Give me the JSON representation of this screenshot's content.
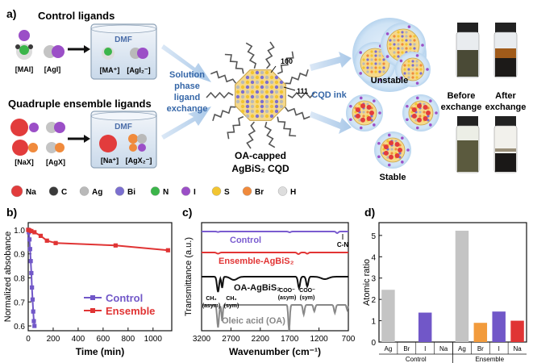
{
  "panels": {
    "a": "a)",
    "b": "b)",
    "c": "c)",
    "d": "d)"
  },
  "schematic": {
    "control_title": "Control ligands",
    "control_labels": [
      "[MAI]",
      "[AgI]"
    ],
    "control_solution_labels": [
      "[MA⁺]",
      "[AgI₂⁻]"
    ],
    "ensemble_title": "Quadruple ensemble ligands",
    "ensemble_labels": [
      "[NaX]",
      "[AgX]"
    ],
    "ensemble_solution_labels": [
      "[Na⁺]",
      "[AgX₂⁻]"
    ],
    "solvent": "DMF",
    "exchange_text": [
      "Solution",
      "phase",
      "ligand",
      "exchange"
    ],
    "facet_labels": [
      "100",
      "111"
    ],
    "dot_caption": [
      "OA-capped",
      "AgBiS₂ CQD"
    ],
    "ink_label": "CQD ink",
    "unstable": "Unstable",
    "stable": "Stable",
    "before": [
      "Before",
      "exchange"
    ],
    "after": [
      "After",
      "exchange"
    ],
    "legend": [
      {
        "label": "Na",
        "color": "#e23c3c"
      },
      {
        "label": "C",
        "color": "#3a3a3a"
      },
      {
        "label": "Ag",
        "color": "#b9b9b9"
      },
      {
        "label": "Bi",
        "color": "#7b6fd0"
      },
      {
        "label": "N",
        "color": "#3bb54a"
      },
      {
        "label": "I",
        "color": "#9b4fc7"
      },
      {
        "label": "S",
        "color": "#f2c531"
      },
      {
        "label": "Br",
        "color": "#f08a3c"
      },
      {
        "label": "H",
        "color": "#dddddd"
      }
    ]
  },
  "chart_data": [
    {
      "type": "line",
      "panel": "b",
      "xlabel": "Time (min)",
      "ylabel": "Normalized absobance",
      "xlim": [
        0,
        1150
      ],
      "ylim": [
        0.58,
        1.03
      ],
      "xticks": [
        0,
        200,
        400,
        600,
        800,
        1000
      ],
      "yticks": [
        0.6,
        0.7,
        0.8,
        0.9,
        1.0
      ],
      "series": [
        {
          "name": "Control",
          "color": "#7157c8",
          "x": [
            0,
            5,
            10,
            15,
            20,
            25,
            30,
            35,
            40,
            45,
            50
          ],
          "y": [
            1.0,
            0.99,
            0.96,
            0.92,
            0.87,
            0.82,
            0.76,
            0.71,
            0.66,
            0.62,
            0.6
          ]
        },
        {
          "name": "Ensemble",
          "color": "#e03434",
          "x": [
            0,
            10,
            25,
            50,
            100,
            150,
            220,
            700,
            1120
          ],
          "y": [
            1.0,
            0.998,
            0.995,
            0.99,
            0.975,
            0.955,
            0.945,
            0.935,
            0.915
          ]
        }
      ]
    },
    {
      "type": "line",
      "panel": "c",
      "xlabel": "Wavenumber (cm⁻¹)",
      "ylabel": "Transmittance (a.u.)",
      "xlim": [
        3200,
        700
      ],
      "xticks": [
        3200,
        2700,
        2200,
        1700,
        1200,
        700
      ],
      "series": [
        {
          "name": "Control",
          "color": "#7a5cd0"
        },
        {
          "name": "Ensemble-AgBiS₂",
          "color": "#e23434"
        },
        {
          "name": "OA-AgBiS₂",
          "color": "#111111"
        },
        {
          "name": "Oleic acid (OA)",
          "color": "#888888"
        }
      ],
      "annotations": [
        "C-N",
        "CH₂ (asym)",
        "CH₂ (sym)",
        "COO⁻ (asym)",
        "COO⁻ (sym)"
      ]
    },
    {
      "type": "bar",
      "panel": "d",
      "ylabel": "Atomic ratio",
      "ylim": [
        0,
        5.6
      ],
      "yticks": [
        0,
        1,
        2,
        3,
        4,
        5
      ],
      "groups": [
        "Control",
        "Ensemble"
      ],
      "categories": [
        "Ag",
        "Br",
        "I",
        "Na",
        "Ag",
        "Br",
        "I",
        "Na"
      ],
      "values": [
        2.45,
        0,
        1.38,
        0,
        5.22,
        0.9,
        1.43,
        1.0
      ],
      "colors": [
        "#c4c4c4",
        "#f29b3c",
        "#7157c8",
        "#e03434",
        "#c4c4c4",
        "#f29b3c",
        "#7157c8",
        "#e03434"
      ]
    }
  ]
}
